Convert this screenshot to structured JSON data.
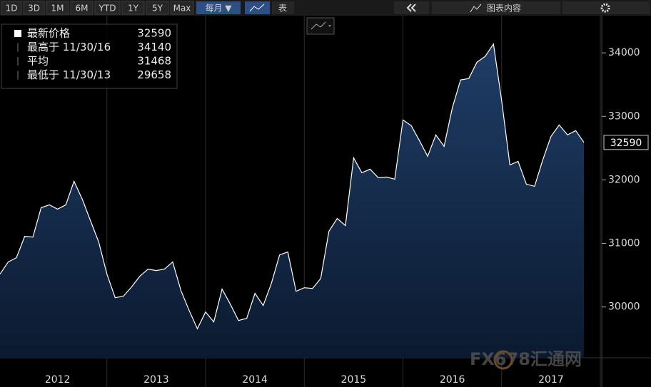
{
  "toolbar": {
    "ranges": [
      "1D",
      "3D",
      "1M",
      "6M",
      "YTD",
      "1Y",
      "5Y",
      "Max"
    ],
    "frequency": "每月 ▼",
    "table": "表",
    "chart_contents": "图表内容"
  },
  "legend": {
    "items": [
      {
        "label": "最新价格",
        "value": 32590
      },
      {
        "label": "最高于 11/30/16",
        "value": 34140
      },
      {
        "label": "平均",
        "value": 31468
      },
      {
        "label": "最低于 11/30/13",
        "value": 29658
      }
    ]
  },
  "watermark": "FX678汇通网",
  "chart_data": {
    "type": "area",
    "color": "#ffffff",
    "fill": "#17335a",
    "categories": [
      null,
      null,
      null,
      null,
      null,
      null,
      null,
      "2012",
      null,
      null,
      null,
      null,
      null,
      null,
      null,
      null,
      null,
      null,
      null,
      "2013",
      null,
      null,
      null,
      null,
      null,
      null,
      null,
      null,
      null,
      null,
      null,
      "2014",
      null,
      null,
      null,
      null,
      null,
      null,
      null,
      null,
      null,
      null,
      null,
      "2015",
      null,
      null,
      null,
      null,
      null,
      null,
      null,
      null,
      null,
      null,
      null,
      "2016",
      null,
      null,
      null,
      null,
      null,
      null,
      null,
      null,
      null,
      null,
      null,
      "2017",
      null,
      null,
      null,
      null
    ],
    "values": [
      30517,
      30708,
      30775,
      31112,
      31101,
      31562,
      31607,
      31540,
      31607,
      31978,
      31697,
      31360,
      31022,
      30517,
      30146,
      30169,
      30315,
      30483,
      30596,
      30573,
      30596,
      30708,
      30258,
      29944,
      29658,
      29921,
      29764,
      30281,
      30045,
      29787,
      29820,
      30214,
      30022,
      30371,
      30820,
      30865,
      30247,
      30303,
      30292,
      30449,
      31191,
      31393,
      31281,
      32348,
      32112,
      32168,
      32034,
      32045,
      32011,
      32944,
      32854,
      32618,
      32371,
      32708,
      32528,
      33135,
      33573,
      33596,
      33854,
      33944,
      34140,
      33247,
      32236,
      32292,
      31933,
      31899,
      32315,
      32685,
      32865,
      32708,
      32775,
      32590
    ],
    "ylim": [
      29200,
      34585
    ],
    "yticks": [
      30000,
      31000,
      32000,
      33000,
      34000
    ]
  }
}
